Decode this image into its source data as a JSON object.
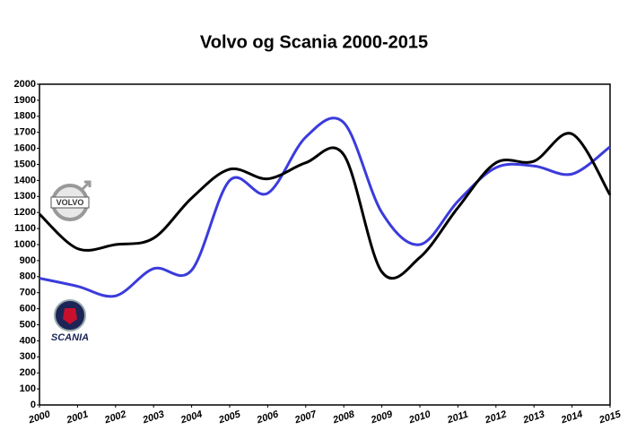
{
  "chart_data": {
    "type": "line",
    "title": "Volvo og Scania 2000-2015",
    "x": [
      2000,
      2001,
      2002,
      2003,
      2004,
      2005,
      2006,
      2007,
      2008,
      2009,
      2010,
      2011,
      2012,
      2013,
      2014,
      2015
    ],
    "xlim": [
      2000,
      2015
    ],
    "xticks": [
      2000,
      2001,
      2002,
      2003,
      2004,
      2005,
      2006,
      2007,
      2008,
      2009,
      2010,
      2011,
      2012,
      2013,
      2014,
      2015
    ],
    "ylim": [
      0,
      2000
    ],
    "yticks": [
      0,
      100,
      200,
      300,
      400,
      500,
      600,
      700,
      800,
      900,
      1000,
      1100,
      1200,
      1300,
      1400,
      1500,
      1600,
      1700,
      1800,
      1900,
      2000
    ],
    "grid": false,
    "series": [
      {
        "name": "VOLVO",
        "color": "#000000",
        "values": [
          1190,
          975,
          1000,
          1040,
          1290,
          1470,
          1410,
          1510,
          1560,
          830,
          920,
          1230,
          1510,
          1520,
          1690,
          1310
        ]
      },
      {
        "name": "SCANIA",
        "color": "#3b3bdc",
        "values": [
          790,
          740,
          680,
          850,
          840,
          1400,
          1320,
          1670,
          1760,
          1200,
          1000,
          1270,
          1480,
          1490,
          1440,
          1610
        ]
      }
    ]
  }
}
